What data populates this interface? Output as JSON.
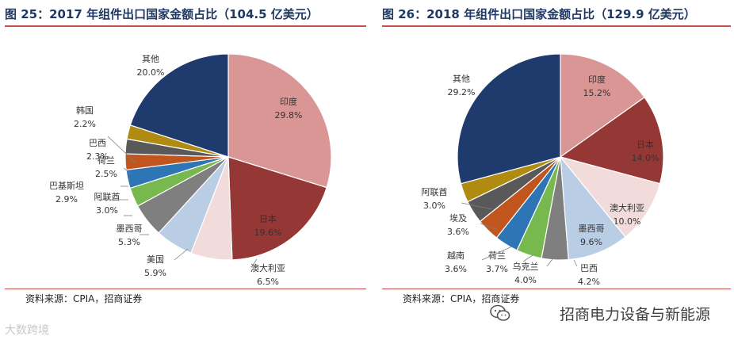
{
  "chart_data": [
    {
      "type": "pie",
      "title": "图 25：2017 年组件出口国家金额占比（104.5 亿美元）",
      "unit": "%",
      "slices": [
        {
          "label": "印度",
          "value": 29.8,
          "value_label": "29.8%",
          "color": "#da9694"
        },
        {
          "label": "日本",
          "value": 19.6,
          "value_label": "19.6%",
          "color": "#953735"
        },
        {
          "label": "澳大利亚",
          "value": 6.5,
          "value_label": "6.5%",
          "color": "#f2dcdb"
        },
        {
          "label": "美国",
          "value": 5.9,
          "value_label": "5.9%",
          "color": "#b9cde5"
        },
        {
          "label": "墨西哥",
          "value": 5.3,
          "value_label": "5.3%",
          "color": "#7f7f7f"
        },
        {
          "label": "阿联酋",
          "value": 3.0,
          "value_label": "3.0%",
          "color": "#77b94f"
        },
        {
          "label": "巴基斯坦",
          "value": 2.9,
          "value_label": "2.9%",
          "color": "#2e75b6"
        },
        {
          "label": "荷兰",
          "value": 2.5,
          "value_label": "2.5%",
          "color": "#c0561d"
        },
        {
          "label": "巴西",
          "value": 2.3,
          "value_label": "2.3%",
          "color": "#595959"
        },
        {
          "label": "韩国",
          "value": 2.2,
          "value_label": "2.2%",
          "color": "#b08b12"
        },
        {
          "label": "其他",
          "value": 20.0,
          "value_label": "20.0%",
          "color": "#1f3b6e"
        }
      ],
      "source": "资料来源：CPIA，招商证券"
    },
    {
      "type": "pie",
      "title": "图 26：2018 年组件出口国家金额占比（129.9 亿美元）",
      "unit": "%",
      "slices": [
        {
          "label": "印度",
          "value": 15.2,
          "value_label": "15.2%",
          "color": "#da9694"
        },
        {
          "label": "日本",
          "value": 14.0,
          "value_label": "14.0%",
          "color": "#953735"
        },
        {
          "label": "澳大利亚",
          "value": 10.0,
          "value_label": "10.0%",
          "color": "#f2dcdb"
        },
        {
          "label": "墨西哥",
          "value": 9.6,
          "value_label": "9.6%",
          "color": "#b9cde5"
        },
        {
          "label": "巴西",
          "value": 4.2,
          "value_label": "4.2%",
          "color": "#7f7f7f"
        },
        {
          "label": "乌克兰",
          "value": 4.0,
          "value_label": "4.0%",
          "color": "#77b94f"
        },
        {
          "label": "荷兰",
          "value": 3.7,
          "value_label": "3.7%",
          "color": "#2e75b6"
        },
        {
          "label": "越南",
          "value": 3.6,
          "value_label": "3.6%",
          "color": "#c0561d"
        },
        {
          "label": "埃及",
          "value": 3.6,
          "value_label": "3.6%",
          "color": "#595959"
        },
        {
          "label": "阿联酋",
          "value": 3.0,
          "value_label": "3.0%",
          "color": "#b08b12"
        },
        {
          "label": "其他",
          "value": 29.2,
          "value_label": "29.2%",
          "color": "#1f3b6e"
        }
      ],
      "source": "资料来源：CPIA，招商证券"
    }
  ],
  "footer": {
    "brand": "招商电力设备与新能源",
    "watermark": "大数跨境"
  }
}
